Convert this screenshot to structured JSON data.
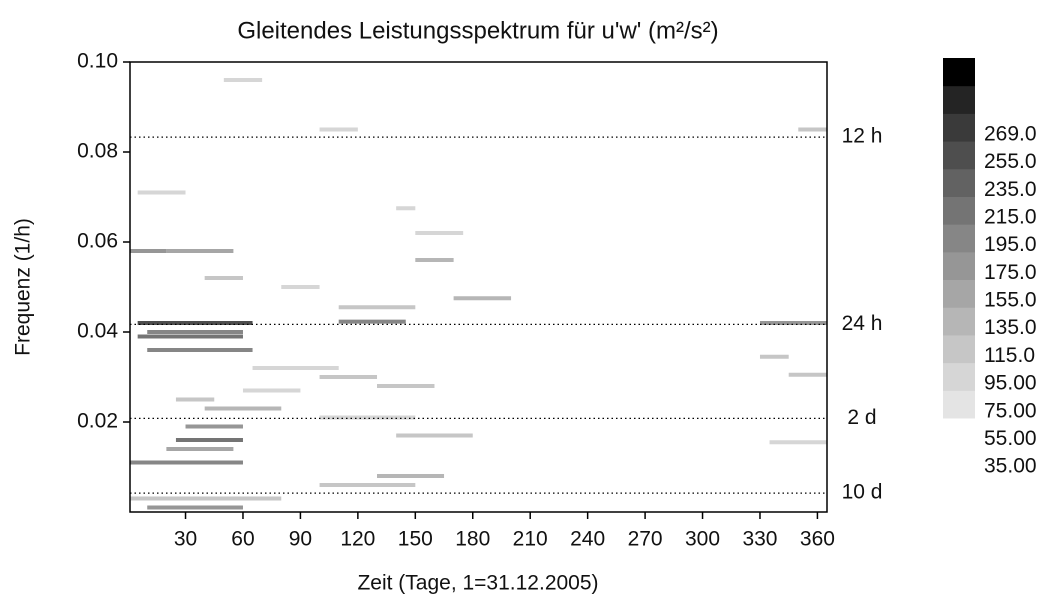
{
  "chart_data": {
    "type": "heatmap",
    "title": "Gleitendes Leistungsspektrum für u'w' (m²/s²)",
    "x_label": "Zeit (Tage, 1=31.12.2005)",
    "y_label": "Frequenz (1/h)",
    "xlim": [
      1,
      365
    ],
    "ylim": [
      0,
      0.1
    ],
    "xticks": [
      30,
      60,
      90,
      120,
      150,
      180,
      210,
      240,
      270,
      300,
      330,
      360
    ],
    "yticks": [
      0.02,
      0.04,
      0.06,
      0.08,
      {
        "value": 0.1,
        "label": "0.10"
      }
    ],
    "reference_lines": [
      {
        "value": 0.0833,
        "label": "12 h"
      },
      {
        "value": 0.0417,
        "label": "24 h"
      },
      {
        "value": 0.0208,
        "label": "2 d"
      },
      {
        "value": 0.0042,
        "label": "10 d"
      }
    ],
    "levels": [
      {
        "value": 35,
        "label": "35.00"
      },
      {
        "value": 55,
        "label": "55.00"
      },
      {
        "value": 75,
        "label": "75.00"
      },
      {
        "value": 95,
        "label": "95.00"
      },
      {
        "value": 115,
        "label": "115.0"
      },
      {
        "value": 135,
        "label": "135.0"
      },
      {
        "value": 155,
        "label": "155.0"
      },
      {
        "value": 175,
        "label": "175.0"
      },
      {
        "value": 195,
        "label": "195.0"
      },
      {
        "value": 215,
        "label": "215.0"
      },
      {
        "value": 235,
        "label": "235.0"
      },
      {
        "value": 255,
        "label": "255.0"
      },
      {
        "value": 269,
        "label": "269.0"
      }
    ],
    "colormap": [
      "#e4e4e4",
      "#d6d6d6",
      "#c6c6c6",
      "#b6b6b6",
      "#a6a6a6",
      "#969696",
      "#868686",
      "#747474",
      "#626262",
      "#4e4e4e",
      "#3a3a3a",
      "#242424",
      "#000000"
    ],
    "cells": [
      {
        "x0": 10,
        "x1": 60,
        "y": 0.001,
        "value": 150
      },
      {
        "x0": 1,
        "x1": 60,
        "y": 0.011,
        "value": 170
      },
      {
        "x0": 20,
        "x1": 55,
        "y": 0.014,
        "value": 120
      },
      {
        "x0": 25,
        "x1": 60,
        "y": 0.016,
        "value": 180
      },
      {
        "x0": 30,
        "x1": 60,
        "y": 0.019,
        "value": 150
      },
      {
        "x0": 40,
        "x1": 80,
        "y": 0.023,
        "value": 110
      },
      {
        "x0": 25,
        "x1": 45,
        "y": 0.025,
        "value": 90
      },
      {
        "x0": 10,
        "x1": 65,
        "y": 0.036,
        "value": 160
      },
      {
        "x0": 5,
        "x1": 60,
        "y": 0.039,
        "value": 190
      },
      {
        "x0": 10,
        "x1": 60,
        "y": 0.04,
        "value": 170
      },
      {
        "x0": 5,
        "x1": 65,
        "y": 0.042,
        "value": 230
      },
      {
        "x0": 110,
        "x1": 145,
        "y": 0.0423,
        "value": 160
      },
      {
        "x0": 330,
        "x1": 365,
        "y": 0.042,
        "value": 140
      },
      {
        "x0": 1,
        "x1": 20,
        "y": 0.058,
        "value": 150
      },
      {
        "x0": 20,
        "x1": 55,
        "y": 0.058,
        "value": 120
      },
      {
        "x0": 40,
        "x1": 60,
        "y": 0.052,
        "value": 90
      },
      {
        "x0": 150,
        "x1": 170,
        "y": 0.056,
        "value": 100
      },
      {
        "x0": 170,
        "x1": 200,
        "y": 0.0475,
        "value": 110
      },
      {
        "x0": 110,
        "x1": 150,
        "y": 0.0455,
        "value": 80
      },
      {
        "x0": 100,
        "x1": 130,
        "y": 0.03,
        "value": 90
      },
      {
        "x0": 130,
        "x1": 160,
        "y": 0.028,
        "value": 80
      },
      {
        "x0": 65,
        "x1": 110,
        "y": 0.032,
        "value": 70
      },
      {
        "x0": 100,
        "x1": 150,
        "y": 0.021,
        "value": 70
      },
      {
        "x0": 140,
        "x1": 180,
        "y": 0.017,
        "value": 80
      },
      {
        "x0": 130,
        "x1": 165,
        "y": 0.008,
        "value": 110
      },
      {
        "x0": 100,
        "x1": 150,
        "y": 0.006,
        "value": 80
      },
      {
        "x0": 1,
        "x1": 80,
        "y": 0.003,
        "value": 90
      },
      {
        "x0": 100,
        "x1": 120,
        "y": 0.085,
        "value": 60
      },
      {
        "x0": 350,
        "x1": 365,
        "y": 0.085,
        "value": 80
      },
      {
        "x0": 50,
        "x1": 70,
        "y": 0.096,
        "value": 60
      },
      {
        "x0": 140,
        "x1": 150,
        "y": 0.0675,
        "value": 70
      },
      {
        "x0": 345,
        "x1": 365,
        "y": 0.0305,
        "value": 90
      },
      {
        "x0": 330,
        "x1": 345,
        "y": 0.0345,
        "value": 80
      },
      {
        "x0": 335,
        "x1": 365,
        "y": 0.0155,
        "value": 70
      },
      {
        "x0": 80,
        "x1": 100,
        "y": 0.05,
        "value": 60
      },
      {
        "x0": 5,
        "x1": 30,
        "y": 0.071,
        "value": 60
      },
      {
        "x0": 150,
        "x1": 175,
        "y": 0.062,
        "value": 60
      },
      {
        "x0": 60,
        "x1": 90,
        "y": 0.027,
        "value": 70
      }
    ]
  }
}
